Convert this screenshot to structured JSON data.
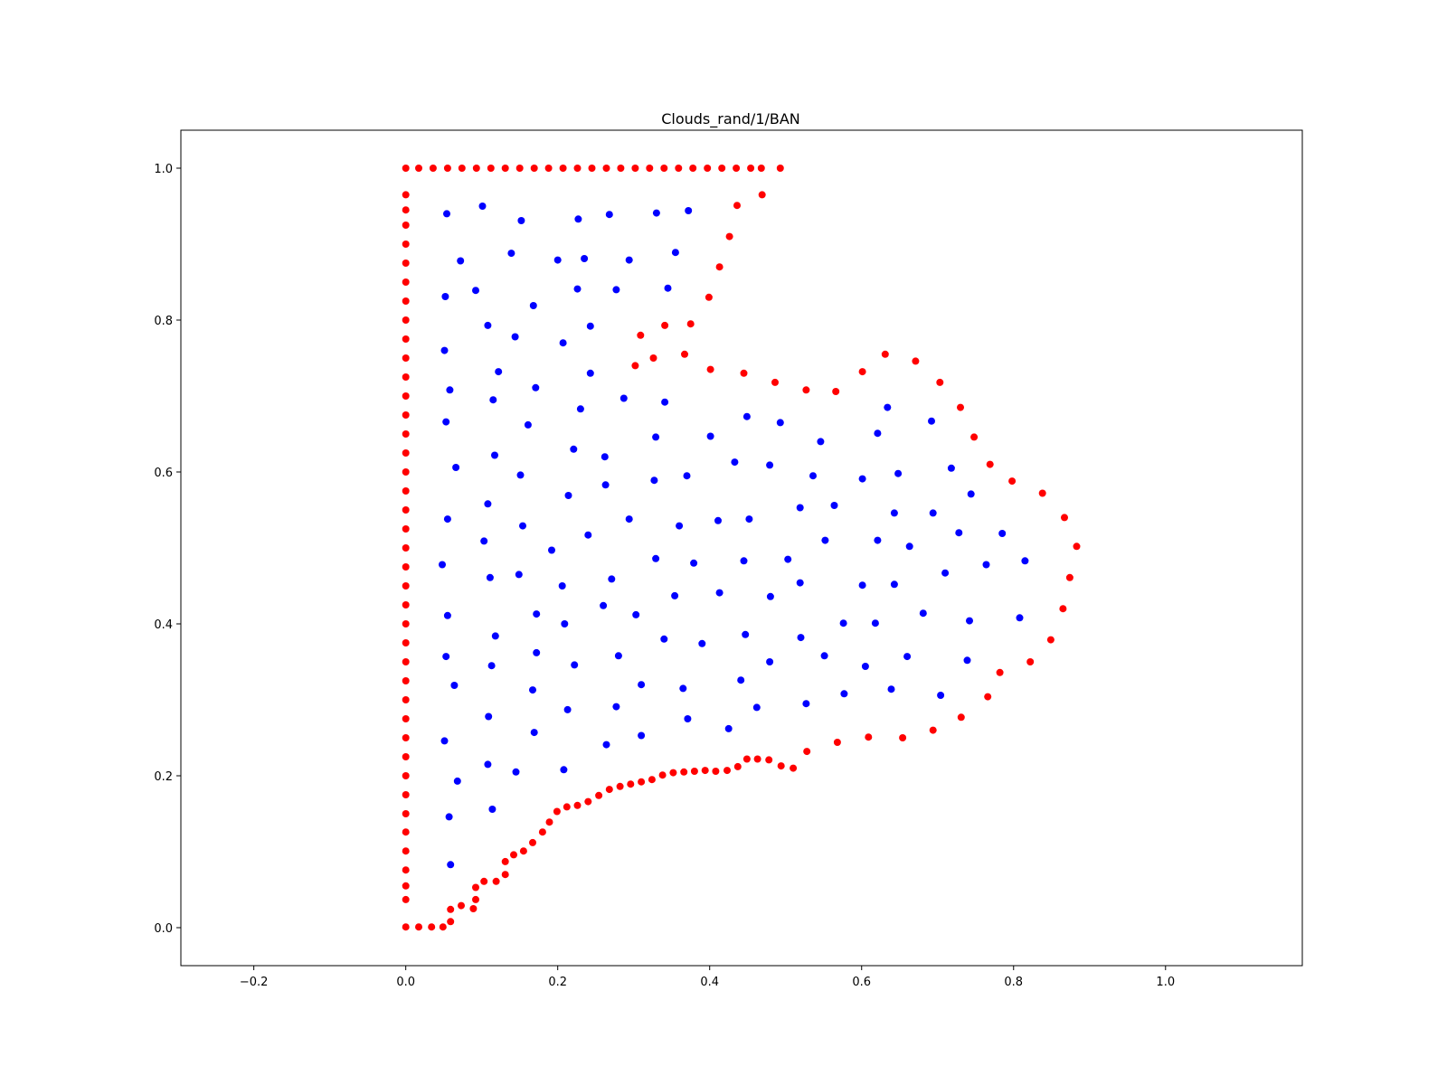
{
  "chart_data": {
    "type": "scatter",
    "title": "Clouds_rand/1/BAN",
    "xlabel": "",
    "ylabel": "",
    "xlim": [
      -0.296,
      1.18
    ],
    "ylim": [
      -0.05,
      1.05
    ],
    "xticks": [
      "−0.2",
      "0.0",
      "0.2",
      "0.4",
      "0.6",
      "0.8",
      "1.0"
    ],
    "xtick_values": [
      -0.2,
      0.0,
      0.2,
      0.4,
      0.6,
      0.8,
      1.0
    ],
    "yticks": [
      "0.0",
      "0.2",
      "0.4",
      "0.6",
      "0.8",
      "1.0"
    ],
    "ytick_values": [
      0.0,
      0.2,
      0.4,
      0.6,
      0.8,
      1.0
    ],
    "grid": false,
    "legend": "none",
    "series": [
      {
        "color": "#ff0000",
        "points": [
          [
            0.0,
            1.0
          ],
          [
            0.017,
            1.0
          ],
          [
            0.036,
            1.0
          ],
          [
            0.055,
            1.0
          ],
          [
            0.074,
            1.0
          ],
          [
            0.093,
            1.0
          ],
          [
            0.112,
            1.0
          ],
          [
            0.131,
            1.0
          ],
          [
            0.15,
            1.0
          ],
          [
            0.169,
            1.0
          ],
          [
            0.188,
            1.0
          ],
          [
            0.207,
            1.0
          ],
          [
            0.226,
            1.0
          ],
          [
            0.245,
            1.0
          ],
          [
            0.264,
            1.0
          ],
          [
            0.283,
            1.0
          ],
          [
            0.302,
            1.0
          ],
          [
            0.321,
            1.0
          ],
          [
            0.34,
            1.0
          ],
          [
            0.359,
            1.0
          ],
          [
            0.378,
            1.0
          ],
          [
            0.397,
            1.0
          ],
          [
            0.416,
            1.0
          ],
          [
            0.435,
            1.0
          ],
          [
            0.454,
            1.0
          ],
          [
            0.468,
            1.0
          ],
          [
            0.493,
            1.0
          ],
          [
            0.469,
            0.965
          ],
          [
            0.436,
            0.951
          ],
          [
            0.426,
            0.91
          ],
          [
            0.413,
            0.87
          ],
          [
            0.399,
            0.83
          ],
          [
            0.375,
            0.795
          ],
          [
            0.341,
            0.793
          ],
          [
            0.309,
            0.78
          ],
          [
            0.326,
            0.75
          ],
          [
            0.367,
            0.755
          ],
          [
            0.302,
            0.74
          ],
          [
            0.401,
            0.735
          ],
          [
            0.445,
            0.73
          ],
          [
            0.486,
            0.718
          ],
          [
            0.527,
            0.708
          ],
          [
            0.566,
            0.706
          ],
          [
            0.601,
            0.732
          ],
          [
            0.631,
            0.755
          ],
          [
            0.671,
            0.746
          ],
          [
            0.703,
            0.718
          ],
          [
            0.73,
            0.685
          ],
          [
            0.748,
            0.646
          ],
          [
            0.769,
            0.61
          ],
          [
            0.798,
            0.588
          ],
          [
            0.838,
            0.572
          ],
          [
            0.867,
            0.54
          ],
          [
            0.883,
            0.502
          ],
          [
            0.874,
            0.461
          ],
          [
            0.865,
            0.42
          ],
          [
            0.849,
            0.379
          ],
          [
            0.822,
            0.35
          ],
          [
            0.782,
            0.336
          ],
          [
            0.766,
            0.304
          ],
          [
            0.731,
            0.277
          ],
          [
            0.694,
            0.26
          ],
          [
            0.654,
            0.25
          ],
          [
            0.609,
            0.251
          ],
          [
            0.568,
            0.244
          ],
          [
            0.528,
            0.232
          ],
          [
            0.51,
            0.21
          ],
          [
            0.494,
            0.213
          ],
          [
            0.478,
            0.221
          ],
          [
            0.463,
            0.222
          ],
          [
            0.449,
            0.222
          ],
          [
            0.437,
            0.212
          ],
          [
            0.423,
            0.207
          ],
          [
            0.408,
            0.206
          ],
          [
            0.394,
            0.207
          ],
          [
            0.38,
            0.206
          ],
          [
            0.366,
            0.205
          ],
          [
            0.352,
            0.204
          ],
          [
            0.338,
            0.201
          ],
          [
            0.324,
            0.195
          ],
          [
            0.31,
            0.192
          ],
          [
            0.296,
            0.189
          ],
          [
            0.282,
            0.186
          ],
          [
            0.268,
            0.182
          ],
          [
            0.254,
            0.174
          ],
          [
            0.24,
            0.166
          ],
          [
            0.226,
            0.161
          ],
          [
            0.212,
            0.159
          ],
          [
            0.199,
            0.153
          ],
          [
            0.189,
            0.139
          ],
          [
            0.18,
            0.126
          ],
          [
            0.167,
            0.112
          ],
          [
            0.155,
            0.101
          ],
          [
            0.142,
            0.096
          ],
          [
            0.131,
            0.087
          ],
          [
            0.131,
            0.07
          ],
          [
            0.119,
            0.061
          ],
          [
            0.103,
            0.061
          ],
          [
            0.092,
            0.053
          ],
          [
            0.092,
            0.037
          ],
          [
            0.089,
            0.025
          ],
          [
            0.073,
            0.029
          ],
          [
            0.059,
            0.024
          ],
          [
            0.059,
            0.008
          ],
          [
            0.049,
            0.001
          ],
          [
            0.034,
            0.001
          ],
          [
            0.017,
            0.001
          ],
          [
            0.0,
            0.001
          ],
          [
            0.0,
            0.037
          ],
          [
            0.0,
            0.055
          ],
          [
            0.0,
            0.076
          ],
          [
            0.0,
            0.101
          ],
          [
            0.0,
            0.126
          ],
          [
            0.0,
            0.15
          ],
          [
            0.0,
            0.175
          ],
          [
            0.0,
            0.2
          ],
          [
            0.0,
            0.225
          ],
          [
            0.0,
            0.25
          ],
          [
            0.0,
            0.275
          ],
          [
            0.0,
            0.3
          ],
          [
            0.0,
            0.325
          ],
          [
            0.0,
            0.35
          ],
          [
            0.0,
            0.375
          ],
          [
            0.0,
            0.4
          ],
          [
            0.0,
            0.425
          ],
          [
            0.0,
            0.45
          ],
          [
            0.0,
            0.475
          ],
          [
            0.0,
            0.5
          ],
          [
            0.0,
            0.525
          ],
          [
            0.0,
            0.55
          ],
          [
            0.0,
            0.575
          ],
          [
            0.0,
            0.6
          ],
          [
            0.0,
            0.625
          ],
          [
            0.0,
            0.65
          ],
          [
            0.0,
            0.675
          ],
          [
            0.0,
            0.7
          ],
          [
            0.0,
            0.725
          ],
          [
            0.0,
            0.75
          ],
          [
            0.0,
            0.775
          ],
          [
            0.0,
            0.8
          ],
          [
            0.0,
            0.825
          ],
          [
            0.0,
            0.85
          ],
          [
            0.0,
            0.875
          ],
          [
            0.0,
            0.9
          ],
          [
            0.0,
            0.925
          ],
          [
            0.0,
            0.945
          ],
          [
            0.0,
            0.965
          ]
        ]
      },
      {
        "color": "#0000ff",
        "points": [
          [
            0.054,
            0.94
          ],
          [
            0.101,
            0.95
          ],
          [
            0.152,
            0.931
          ],
          [
            0.227,
            0.933
          ],
          [
            0.268,
            0.939
          ],
          [
            0.33,
            0.941
          ],
          [
            0.372,
            0.944
          ],
          [
            0.072,
            0.878
          ],
          [
            0.139,
            0.888
          ],
          [
            0.2,
            0.879
          ],
          [
            0.235,
            0.881
          ],
          [
            0.294,
            0.879
          ],
          [
            0.355,
            0.889
          ],
          [
            0.052,
            0.831
          ],
          [
            0.092,
            0.839
          ],
          [
            0.168,
            0.819
          ],
          [
            0.226,
            0.841
          ],
          [
            0.277,
            0.84
          ],
          [
            0.345,
            0.842
          ],
          [
            0.108,
            0.793
          ],
          [
            0.144,
            0.778
          ],
          [
            0.207,
            0.77
          ],
          [
            0.243,
            0.792
          ],
          [
            0.051,
            0.76
          ],
          [
            0.122,
            0.732
          ],
          [
            0.171,
            0.711
          ],
          [
            0.243,
            0.73
          ],
          [
            0.058,
            0.708
          ],
          [
            0.115,
            0.695
          ],
          [
            0.161,
            0.662
          ],
          [
            0.23,
            0.683
          ],
          [
            0.287,
            0.697
          ],
          [
            0.341,
            0.692
          ],
          [
            0.053,
            0.666
          ],
          [
            0.117,
            0.622
          ],
          [
            0.221,
            0.63
          ],
          [
            0.262,
            0.62
          ],
          [
            0.329,
            0.646
          ],
          [
            0.401,
            0.647
          ],
          [
            0.449,
            0.673
          ],
          [
            0.493,
            0.665
          ],
          [
            0.546,
            0.64
          ],
          [
            0.621,
            0.651
          ],
          [
            0.634,
            0.685
          ],
          [
            0.692,
            0.667
          ],
          [
            0.066,
            0.606
          ],
          [
            0.151,
            0.596
          ],
          [
            0.214,
            0.569
          ],
          [
            0.263,
            0.583
          ],
          [
            0.327,
            0.589
          ],
          [
            0.37,
            0.595
          ],
          [
            0.433,
            0.613
          ],
          [
            0.479,
            0.609
          ],
          [
            0.536,
            0.595
          ],
          [
            0.601,
            0.591
          ],
          [
            0.648,
            0.598
          ],
          [
            0.718,
            0.605
          ],
          [
            0.744,
            0.571
          ],
          [
            0.055,
            0.538
          ],
          [
            0.108,
            0.558
          ],
          [
            0.154,
            0.529
          ],
          [
            0.24,
            0.517
          ],
          [
            0.294,
            0.538
          ],
          [
            0.36,
            0.529
          ],
          [
            0.411,
            0.536
          ],
          [
            0.452,
            0.538
          ],
          [
            0.519,
            0.553
          ],
          [
            0.564,
            0.556
          ],
          [
            0.643,
            0.546
          ],
          [
            0.694,
            0.546
          ],
          [
            0.728,
            0.52
          ],
          [
            0.785,
            0.519
          ],
          [
            0.103,
            0.509
          ],
          [
            0.192,
            0.497
          ],
          [
            0.552,
            0.51
          ],
          [
            0.621,
            0.51
          ],
          [
            0.663,
            0.502
          ],
          [
            0.048,
            0.478
          ],
          [
            0.111,
            0.461
          ],
          [
            0.149,
            0.465
          ],
          [
            0.206,
            0.45
          ],
          [
            0.271,
            0.459
          ],
          [
            0.329,
            0.486
          ],
          [
            0.379,
            0.48
          ],
          [
            0.445,
            0.483
          ],
          [
            0.503,
            0.485
          ],
          [
            0.71,
            0.467
          ],
          [
            0.764,
            0.478
          ],
          [
            0.815,
            0.483
          ],
          [
            0.055,
            0.411
          ],
          [
            0.172,
            0.413
          ],
          [
            0.209,
            0.4
          ],
          [
            0.26,
            0.424
          ],
          [
            0.303,
            0.412
          ],
          [
            0.354,
            0.437
          ],
          [
            0.413,
            0.441
          ],
          [
            0.48,
            0.436
          ],
          [
            0.519,
            0.454
          ],
          [
            0.601,
            0.451
          ],
          [
            0.643,
            0.452
          ],
          [
            0.576,
            0.401
          ],
          [
            0.618,
            0.401
          ],
          [
            0.681,
            0.414
          ],
          [
            0.742,
            0.404
          ],
          [
            0.808,
            0.408
          ],
          [
            0.118,
            0.384
          ],
          [
            0.34,
            0.38
          ],
          [
            0.39,
            0.374
          ],
          [
            0.447,
            0.386
          ],
          [
            0.52,
            0.382
          ],
          [
            0.053,
            0.357
          ],
          [
            0.113,
            0.345
          ],
          [
            0.172,
            0.362
          ],
          [
            0.222,
            0.346
          ],
          [
            0.28,
            0.358
          ],
          [
            0.479,
            0.35
          ],
          [
            0.551,
            0.358
          ],
          [
            0.605,
            0.344
          ],
          [
            0.66,
            0.357
          ],
          [
            0.739,
            0.352
          ],
          [
            0.064,
            0.319
          ],
          [
            0.167,
            0.313
          ],
          [
            0.31,
            0.32
          ],
          [
            0.365,
            0.315
          ],
          [
            0.441,
            0.326
          ],
          [
            0.577,
            0.308
          ],
          [
            0.639,
            0.314
          ],
          [
            0.704,
            0.306
          ],
          [
            0.109,
            0.278
          ],
          [
            0.213,
            0.287
          ],
          [
            0.277,
            0.291
          ],
          [
            0.371,
            0.275
          ],
          [
            0.425,
            0.262
          ],
          [
            0.462,
            0.29
          ],
          [
            0.527,
            0.295
          ],
          [
            0.051,
            0.246
          ],
          [
            0.169,
            0.257
          ],
          [
            0.264,
            0.241
          ],
          [
            0.31,
            0.253
          ],
          [
            0.108,
            0.215
          ],
          [
            0.145,
            0.205
          ],
          [
            0.208,
            0.208
          ],
          [
            0.068,
            0.193
          ],
          [
            0.057,
            0.146
          ],
          [
            0.114,
            0.156
          ],
          [
            0.059,
            0.083
          ]
        ]
      }
    ]
  }
}
